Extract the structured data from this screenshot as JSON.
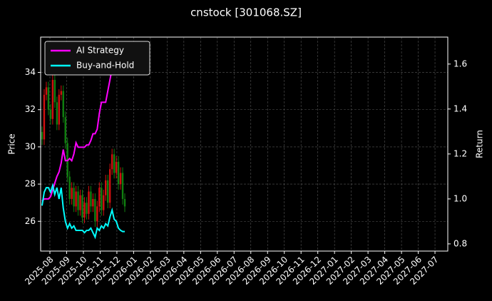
{
  "chart_data": {
    "type": "candlestick",
    "title": "cnstock [301068.SZ]",
    "ylabel": "Price",
    "y2label": "Return",
    "ylim": [
      24.4,
      35.9
    ],
    "yticks": [
      26,
      28,
      30,
      32,
      34
    ],
    "y2lim": [
      0.768,
      1.72
    ],
    "y2ticks": [
      0.8,
      {
        "value": 1,
        "label": "1.0"
      },
      1.2,
      1.4,
      1.6
    ],
    "xtick_labels": [
      "2025-08",
      "2025-09",
      "2025-10",
      "2025-11",
      "2025-12",
      "2026-01",
      "2026-02",
      "2026-03",
      "2026-04",
      "2026-05",
      "2026-06",
      "2026-07",
      "2026-08",
      "2026-09",
      "2026-10",
      "2026-11",
      "2026-12",
      "2027-01",
      "2027-02",
      "2027-03",
      "2027-04",
      "2027-05",
      "2027-06",
      "2027-07"
    ],
    "candles": {
      "open": [
        30.8,
        30.4,
        32.8,
        33.2,
        32.0,
        31.5,
        33.6,
        32.4,
        31.2,
        32.8,
        33.0,
        31.6,
        30.2,
        28.4,
        27.2,
        27.8,
        26.8,
        27.6,
        26.6,
        27.4,
        26.2,
        27.0,
        26.4,
        27.6,
        26.8,
        27.2,
        26.0,
        26.8,
        27.8,
        26.6,
        27.4,
        28.2,
        27.0,
        28.8,
        29.6,
        28.6,
        29.2,
        28.0,
        28.6,
        27.2
      ],
      "high": [
        31.1,
        33.1,
        33.5,
        33.5,
        32.3,
        33.9,
        33.9,
        32.7,
        33.1,
        33.3,
        33.3,
        31.9,
        30.5,
        28.7,
        28.1,
        28.1,
        27.9,
        27.9,
        27.7,
        27.7,
        27.3,
        27.3,
        27.9,
        27.9,
        27.5,
        27.5,
        27.1,
        28.1,
        28.1,
        27.7,
        28.5,
        28.5,
        29.1,
        29.9,
        29.9,
        29.5,
        29.5,
        28.9,
        28.9,
        27.5
      ],
      "low": [
        30.1,
        30.1,
        32.5,
        31.7,
        31.2,
        31.2,
        32.1,
        30.9,
        30.9,
        32.5,
        31.3,
        29.9,
        28.1,
        26.9,
        26.9,
        26.5,
        26.5,
        26.3,
        26.3,
        25.9,
        25.9,
        26.1,
        26.1,
        26.5,
        26.5,
        25.7,
        25.7,
        26.5,
        26.3,
        26.3,
        27.1,
        26.7,
        26.7,
        28.5,
        28.3,
        28.3,
        27.7,
        27.7,
        26.9,
        26.5
      ],
      "close": [
        30.4,
        32.8,
        33.2,
        32.0,
        31.5,
        33.6,
        32.4,
        31.2,
        32.8,
        33.0,
        31.6,
        30.2,
        28.4,
        27.2,
        27.8,
        26.8,
        27.6,
        26.6,
        27.4,
        26.2,
        27.0,
        26.4,
        27.6,
        26.8,
        27.2,
        26.0,
        26.8,
        27.8,
        26.6,
        27.4,
        28.2,
        27.0,
        28.8,
        29.6,
        28.6,
        29.2,
        28.0,
        28.6,
        27.2,
        26.8
      ],
      "up_color": "#d01010",
      "down_color": "#108010"
    },
    "series": [
      {
        "name": "AI Strategy",
        "color": "#ff00ff",
        "axis": "y2",
        "values": [
          0.99,
          1.0,
          1.0,
          1.0,
          1.01,
          1.04,
          1.07,
          1.1,
          1.12,
          1.16,
          1.22,
          1.17,
          1.17,
          1.18,
          1.17,
          1.2,
          1.25,
          1.23,
          1.23,
          1.23,
          1.23,
          1.24,
          1.24,
          1.26,
          1.29,
          1.29,
          1.31,
          1.38,
          1.43,
          1.43,
          1.43,
          1.48,
          1.53,
          1.58,
          1.66,
          1.7,
          null,
          null,
          null,
          null
        ]
      },
      {
        "name": "Buy-and-Hold",
        "color": "#00ffff",
        "axis": "y2",
        "values": [
          0.97,
          1.03,
          1.05,
          1.05,
          1.03,
          1.06,
          1.02,
          1.05,
          1.0,
          1.05,
          0.96,
          0.9,
          0.87,
          0.89,
          0.87,
          0.88,
          0.86,
          0.86,
          0.86,
          0.86,
          0.85,
          0.86,
          0.86,
          0.87,
          0.85,
          0.83,
          0.87,
          0.86,
          0.88,
          0.87,
          0.89,
          0.88,
          0.92,
          0.95,
          0.91,
          0.9,
          0.87,
          0.86,
          0.855,
          0.855
        ]
      }
    ],
    "grid": true,
    "legend": "upper left"
  }
}
